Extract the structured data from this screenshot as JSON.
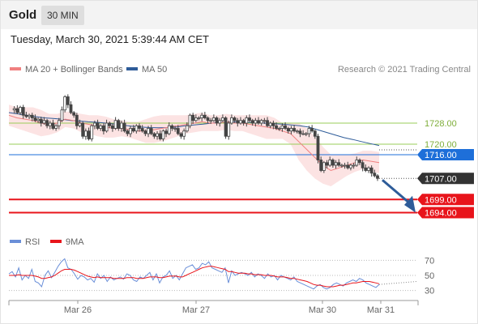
{
  "header": {
    "title": "Gold",
    "timeframe": "30 MIN"
  },
  "timestamp": "Tuesday, March 30, 2021 5:39:44 AM CET",
  "legend": {
    "items": [
      {
        "label": "MA 20 + Bollinger Bands",
        "color": "#f08080"
      },
      {
        "label": "MA 50",
        "color": "#2e5c99"
      }
    ],
    "copyright": "Research © 2021 Trading Central"
  },
  "rsi_legend": {
    "items": [
      {
        "label": "RSI",
        "color": "#6a8fd8"
      },
      {
        "label": "9MA",
        "color": "#e8141b"
      }
    ]
  },
  "colors": {
    "support_line": "#e8141b",
    "resistance_line": "#9acd5a",
    "pivot_line": "#1e6fd9",
    "arrow": "#2e5c99",
    "candle": "#444444"
  },
  "chart_data": [
    {
      "type": "candlestick",
      "ylim": [
        1688,
        1744
      ],
      "x_ticks": [
        "Mar 26",
        "Mar 27",
        "Mar 30",
        "Mar 31"
      ],
      "levels": [
        {
          "value": 1728.0,
          "label": "1728.00",
          "kind": "resistance",
          "color": "#9acd5a"
        },
        {
          "value": 1720.0,
          "label": "1720.00",
          "kind": "resistance",
          "color": "#9acd5a"
        },
        {
          "value": 1716.0,
          "label": "1716.00",
          "kind": "pivot",
          "color": "#1e6fd9"
        },
        {
          "value": 1707.0,
          "label": "1707.00",
          "kind": "last-price",
          "color": "#333333"
        },
        {
          "value": 1699.0,
          "label": "1699.00",
          "kind": "support",
          "color": "#e8141b"
        },
        {
          "value": 1694.0,
          "label": "1694.00",
          "kind": "support",
          "color": "#e8141b"
        }
      ],
      "price_path": [
        1733,
        1733.5,
        1732,
        1734,
        1731,
        1730.5,
        1731,
        1730,
        1729,
        1729.5,
        1728,
        1729,
        1727,
        1728,
        1726,
        1727,
        1729,
        1733,
        1738,
        1735,
        1732,
        1731,
        1727,
        1728,
        1723,
        1725,
        1722,
        1727,
        1728,
        1726,
        1727,
        1725,
        1728,
        1727,
        1726,
        1729,
        1726,
        1728,
        1725,
        1724,
        1726,
        1725,
        1727,
        1726,
        1725,
        1724,
        1726,
        1724,
        1723,
        1724,
        1722,
        1725,
        1724,
        1727,
        1726,
        1726,
        1724,
        1723,
        1725,
        1727,
        1731,
        1729,
        1730,
        1730,
        1731,
        1730,
        1729,
        1729,
        1730,
        1728,
        1729,
        1730,
        1723,
        1728,
        1730,
        1729,
        1728,
        1729,
        1728,
        1730,
        1729,
        1728,
        1729,
        1728,
        1729,
        1729,
        1727,
        1728,
        1727,
        1726,
        1726,
        1727,
        1726,
        1725,
        1726,
        1725,
        1725,
        1724,
        1724,
        1724,
        1726,
        1725,
        1723,
        1714,
        1710,
        1713,
        1712,
        1714,
        1712,
        1713,
        1712,
        1712,
        1712,
        1711,
        1712,
        1712,
        1714,
        1713,
        1711,
        1710,
        1711,
        1709,
        1708,
        1707
      ],
      "ma20_path": [
        1731,
        1730,
        1729.5,
        1729,
        1728,
        1727.5,
        1728,
        1729.5,
        1729,
        1728,
        1727.5,
        1727,
        1726.5,
        1726,
        1726,
        1725.5,
        1725,
        1725,
        1725.5,
        1726,
        1726.5,
        1727,
        1727.5,
        1728,
        1728.5,
        1728,
        1728,
        1728.5,
        1728,
        1728,
        1727.5,
        1727,
        1726.5,
        1726,
        1725,
        1724,
        1721,
        1718,
        1715,
        1712,
        1710,
        1711,
        1712,
        1713,
        1714,
        1713.5,
        1713
      ],
      "ma50_path": [
        1732,
        1731.5,
        1731,
        1730.5,
        1730,
        1729.8,
        1729.5,
        1729,
        1728.8,
        1728.5,
        1728.3,
        1728,
        1727.6,
        1727.2,
        1726.8,
        1726.5,
        1726.3,
        1726.2,
        1726.3,
        1726.5,
        1727,
        1727.3,
        1727.6,
        1728,
        1728.3,
        1728.4,
        1728.5,
        1728.3,
        1728.2,
        1728,
        1727.8,
        1727.6,
        1727.3,
        1727,
        1726.5,
        1725.5,
        1724.5,
        1723.5,
        1722.5,
        1721.8,
        1721,
        1720.2,
        1719.5
      ],
      "bb_width": [
        4,
        4,
        4.5,
        5,
        5,
        4,
        3.5,
        3,
        3,
        3.5,
        3.5,
        4,
        4,
        3.5,
        3,
        3,
        3.5,
        4.5,
        5,
        5,
        4.5,
        4,
        3.5,
        3.5,
        3.5,
        3,
        3,
        3,
        3,
        3,
        3.5,
        4,
        4.5,
        4,
        3,
        4,
        7,
        8,
        8,
        7,
        6,
        5,
        4,
        3.5,
        3.5,
        4,
        4
      ]
    },
    {
      "type": "line",
      "ylim": [
        20,
        80
      ],
      "y_ticks": [
        70,
        50,
        30
      ],
      "rsi": [
        52,
        55,
        48,
        60,
        44,
        50,
        46,
        58,
        42,
        40,
        35,
        50,
        56,
        47,
        54,
        62,
        68,
        72,
        60,
        58,
        52,
        45,
        50,
        48,
        44,
        46,
        41,
        52,
        46,
        50,
        42,
        48,
        44,
        46,
        48,
        45,
        52,
        50,
        44,
        42,
        48,
        46,
        50,
        54,
        44,
        52,
        40,
        48,
        50,
        56,
        46,
        50,
        44,
        52,
        60,
        62,
        64,
        58,
        60,
        66,
        64,
        68,
        60,
        58,
        56,
        54,
        60,
        40,
        56,
        50,
        52,
        54,
        52,
        50,
        54,
        48,
        52,
        50,
        46,
        52,
        48,
        50,
        44,
        50,
        48,
        46,
        44,
        48,
        42,
        40,
        38,
        36,
        34,
        32,
        36,
        38,
        34,
        32,
        34,
        38,
        40,
        38,
        36,
        40,
        42,
        44,
        42,
        46,
        44,
        40,
        38,
        36,
        34,
        38
      ],
      "ma9": [
        50,
        50,
        50,
        51,
        50,
        50,
        50,
        50,
        49,
        48,
        46,
        46,
        47,
        48,
        50,
        53,
        56,
        58,
        58,
        58,
        57,
        55,
        53,
        51,
        49,
        48,
        47,
        48,
        47,
        47,
        47,
        47,
        46,
        46,
        46,
        46,
        47,
        47,
        47,
        46,
        46,
        46,
        47,
        48,
        48,
        48,
        47,
        47,
        48,
        49,
        49,
        49,
        48,
        48,
        50,
        52,
        54,
        56,
        58,
        60,
        61,
        62,
        62,
        61,
        60,
        59,
        58,
        55,
        55,
        54,
        53,
        53,
        53,
        52,
        52,
        51,
        51,
        51,
        50,
        50,
        50,
        49,
        48,
        48,
        48,
        47,
        46,
        46,
        45,
        44,
        43,
        42,
        40,
        38,
        37,
        37,
        36,
        35,
        35,
        35,
        36,
        37,
        37,
        38,
        39,
        40,
        40,
        41,
        42,
        42,
        42,
        41,
        40,
        39
      ]
    }
  ]
}
